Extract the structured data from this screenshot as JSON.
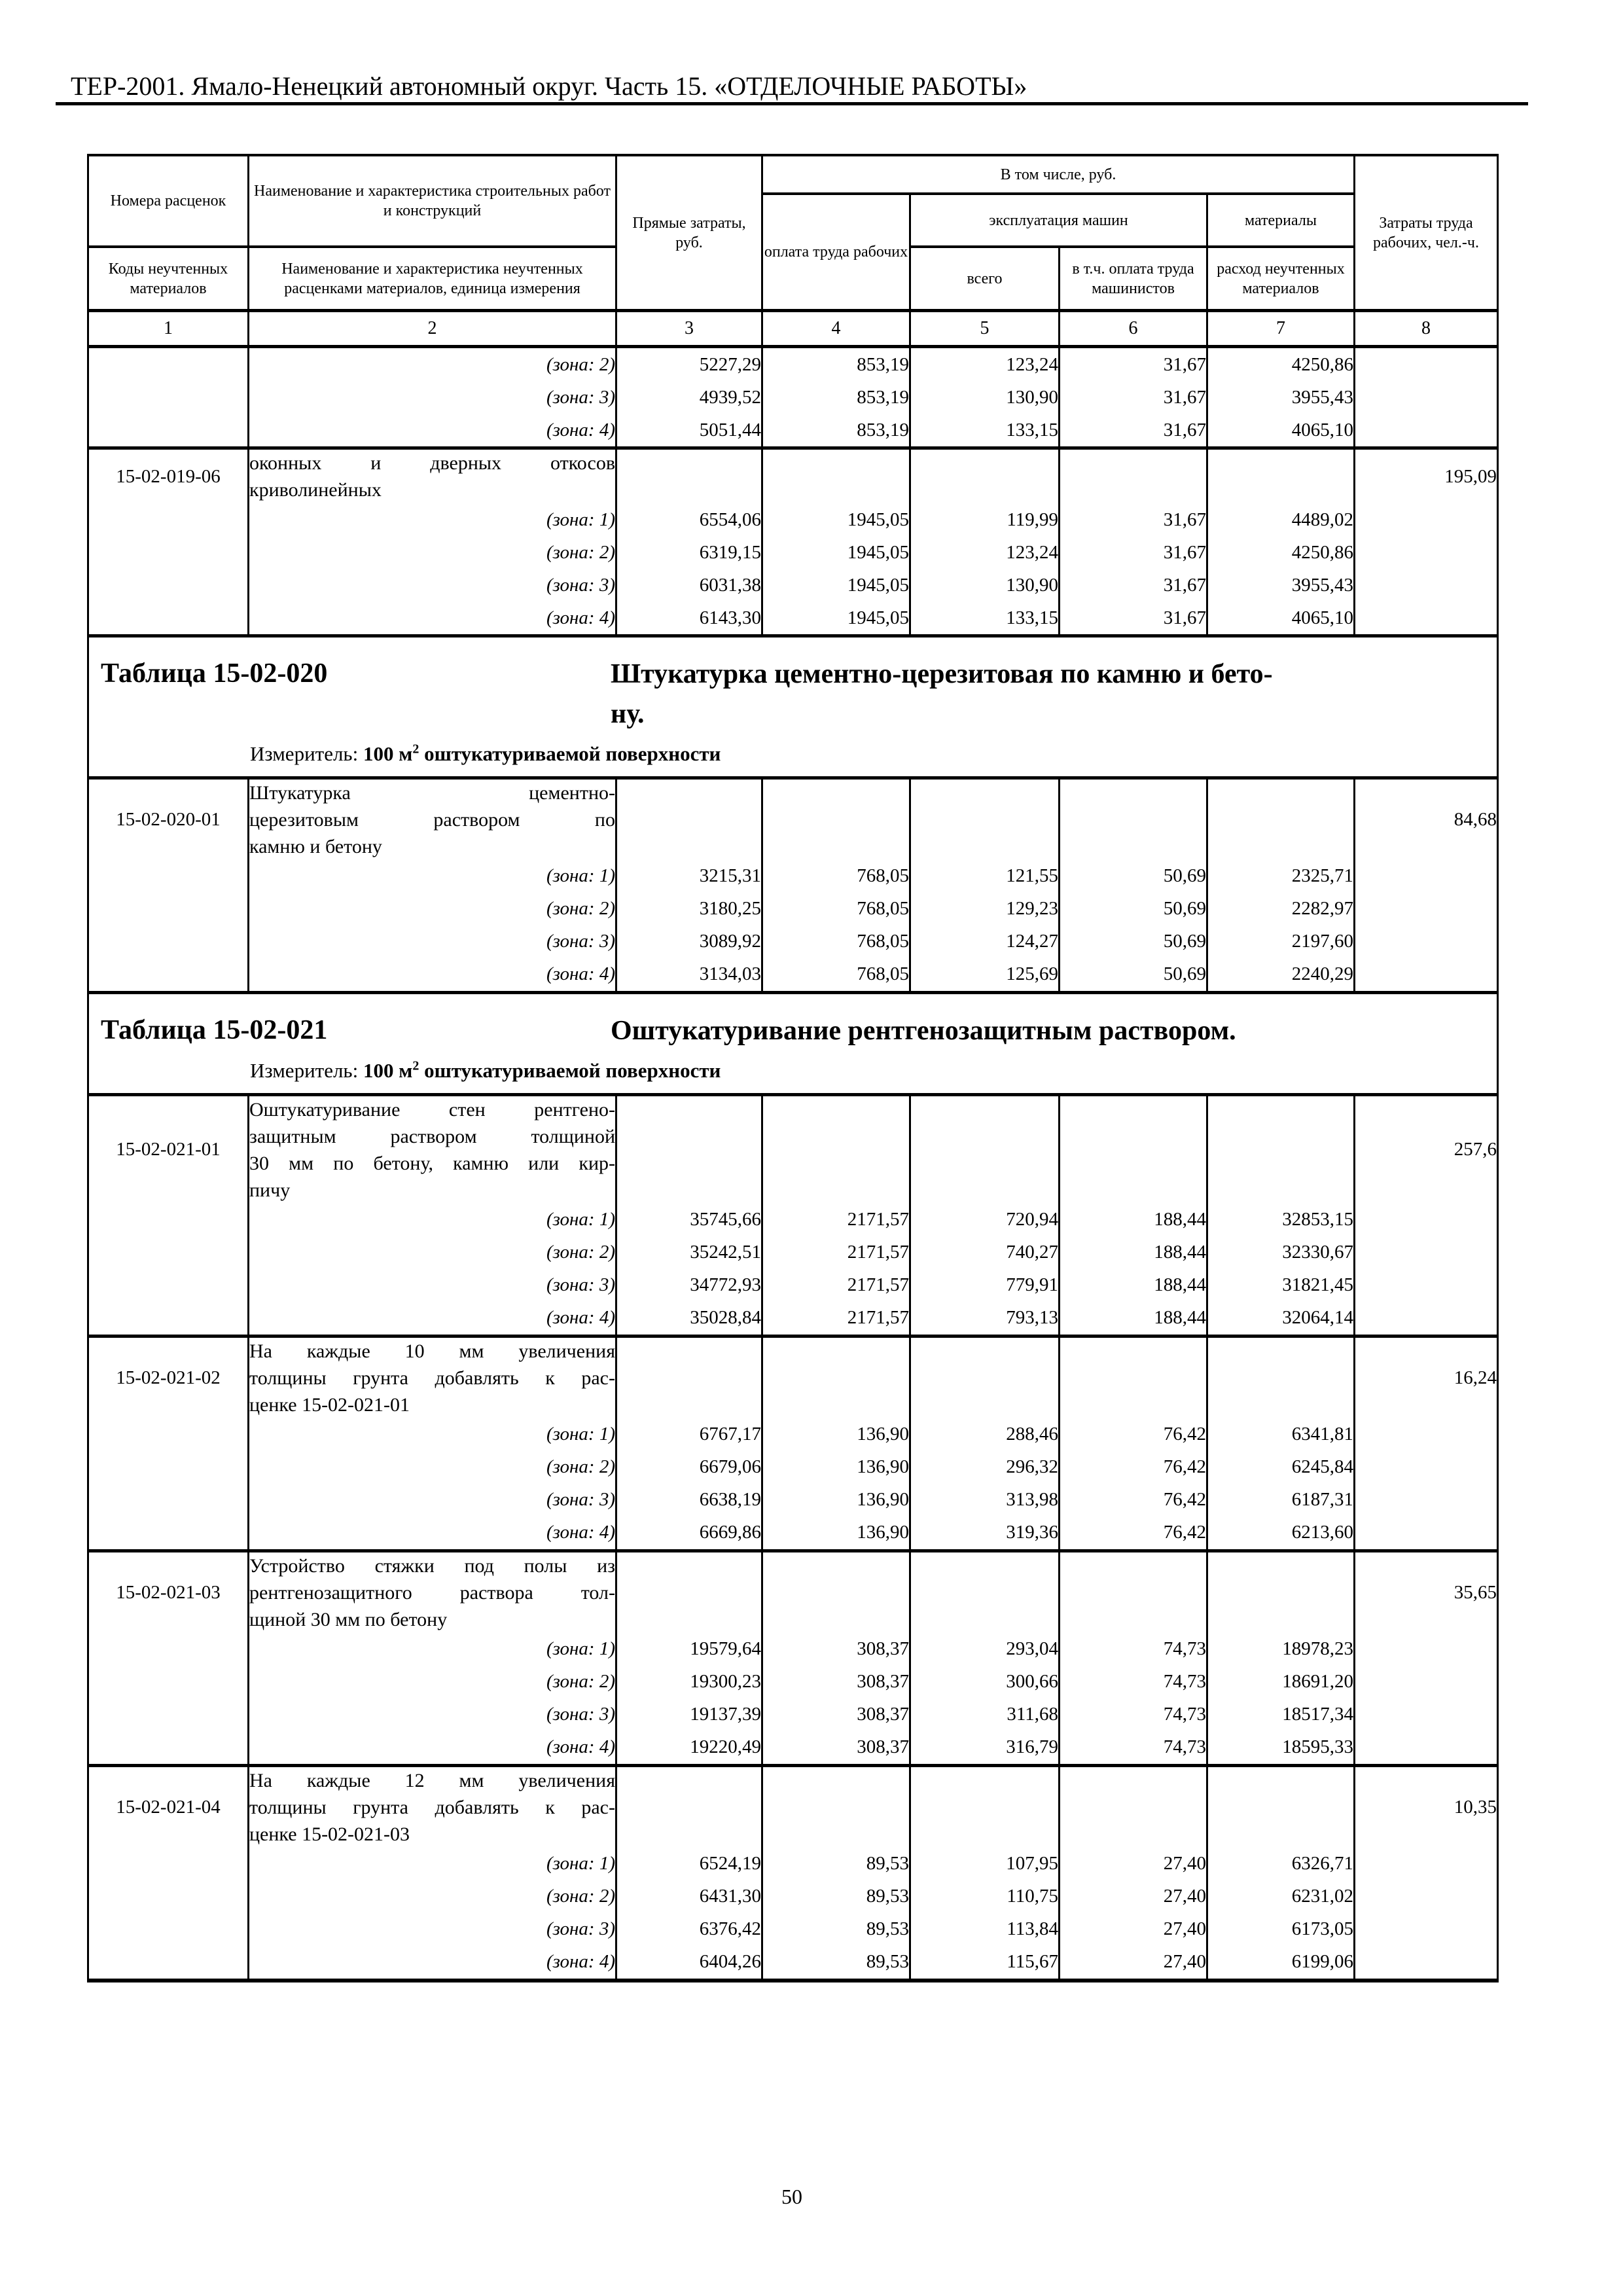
{
  "page": {
    "header_title": "ТЕР-2001. Ямало-Ненецкий автономный округ. Часть 15. «ОТДЕЛОЧНЫЕ РАБОТЫ»",
    "page_number": "50"
  },
  "grid_header": {
    "rate_numbers": "Номера расценок",
    "material_codes": "Коды неучтенных материалов",
    "works_name": "Наименование и характеристика строительных работ и конструкций",
    "materials_name": "Наименование и характеристика неучтенных расценками материалов, единица измерения",
    "direct_costs": "Прямые затраты, руб.",
    "including": "В том числе, руб.",
    "labor_pay": "оплата труда рабочих",
    "machines": "эксплуатация машин",
    "machines_total": "всего",
    "machinists_pay": "в т.ч. оплата труда машинистов",
    "materials": "материалы",
    "materials_consumption": "расход неучтенных материалов",
    "labor_costs": "Затраты труда рабочих, чел.-ч.",
    "column_numbers": [
      "1",
      "2",
      "3",
      "4",
      "5",
      "6",
      "7",
      "8"
    ]
  },
  "blocks": [
    {
      "type": "continuation",
      "zones": [
        {
          "label": "(зона: 2)",
          "values": [
            "5227,29",
            "853,19",
            "123,24",
            "31,67",
            "4250,86"
          ]
        },
        {
          "label": "(зона: 3)",
          "values": [
            "4939,52",
            "853,19",
            "130,90",
            "31,67",
            "3955,43"
          ]
        },
        {
          "label": "(зона: 4)",
          "values": [
            "5051,44",
            "853,19",
            "133,15",
            "31,67",
            "4065,10"
          ]
        }
      ]
    },
    {
      "type": "item",
      "code": "15-02-019-06",
      "name_lines": [
        "оконных и дверных откосов",
        "криволинейных"
      ],
      "labor": "195,09",
      "zones": [
        {
          "label": "(зона: 1)",
          "values": [
            "6554,06",
            "1945,05",
            "119,99",
            "31,67",
            "4489,02"
          ]
        },
        {
          "label": "(зона: 2)",
          "values": [
            "6319,15",
            "1945,05",
            "123,24",
            "31,67",
            "4250,86"
          ]
        },
        {
          "label": "(зона: 3)",
          "values": [
            "6031,38",
            "1945,05",
            "130,90",
            "31,67",
            "3955,43"
          ]
        },
        {
          "label": "(зона: 4)",
          "values": [
            "6143,30",
            "1945,05",
            "133,15",
            "31,67",
            "4065,10"
          ]
        }
      ]
    },
    {
      "type": "section",
      "label": "Таблица 15-02-020",
      "title": "Штукатурка цементно-церезитовая по камню и бето-\nну.",
      "measure_label": "Измеритель: ",
      "measure_prefix": "100 м",
      "measure_sup": "2",
      "measure_suffix": " оштукатуриваемой поверхности"
    },
    {
      "type": "item",
      "code": "15-02-020-01",
      "name_lines": [
        "Штукатурка цементно-",
        "церезитовым раствором по",
        "камню и бетону"
      ],
      "labor": "84,68",
      "zones": [
        {
          "label": "(зона: 1)",
          "values": [
            "3215,31",
            "768,05",
            "121,55",
            "50,69",
            "2325,71"
          ]
        },
        {
          "label": "(зона: 2)",
          "values": [
            "3180,25",
            "768,05",
            "129,23",
            "50,69",
            "2282,97"
          ]
        },
        {
          "label": "(зона: 3)",
          "values": [
            "3089,92",
            "768,05",
            "124,27",
            "50,69",
            "2197,60"
          ]
        },
        {
          "label": "(зона: 4)",
          "values": [
            "3134,03",
            "768,05",
            "125,69",
            "50,69",
            "2240,29"
          ]
        }
      ]
    },
    {
      "type": "section",
      "label": "Таблица 15-02-021",
      "title": "Оштукатуривание рентгенозащитным раствором.",
      "measure_label": "Измеритель: ",
      "measure_prefix": "100 м",
      "measure_sup": "2",
      "measure_suffix": " оштукатуриваемой поверхности"
    },
    {
      "type": "item",
      "code": "15-02-021-01",
      "name_lines": [
        "Оштукатуривание стен рентгено-",
        "защитным раствором толщиной",
        "30 мм по бетону, камню или кир-",
        "пичу"
      ],
      "labor": "257,6",
      "zones": [
        {
          "label": "(зона: 1)",
          "values": [
            "35745,66",
            "2171,57",
            "720,94",
            "188,44",
            "32853,15"
          ]
        },
        {
          "label": "(зона: 2)",
          "values": [
            "35242,51",
            "2171,57",
            "740,27",
            "188,44",
            "32330,67"
          ]
        },
        {
          "label": "(зона: 3)",
          "values": [
            "34772,93",
            "2171,57",
            "779,91",
            "188,44",
            "31821,45"
          ]
        },
        {
          "label": "(зона: 4)",
          "values": [
            "35028,84",
            "2171,57",
            "793,13",
            "188,44",
            "32064,14"
          ]
        }
      ]
    },
    {
      "type": "item",
      "code": "15-02-021-02",
      "name_lines": [
        "На каждые 10 мм увеличения",
        "толщины грунта добавлять к рас-",
        "ценке 15-02-021-01"
      ],
      "labor": "16,24",
      "zones": [
        {
          "label": "(зона: 1)",
          "values": [
            "6767,17",
            "136,90",
            "288,46",
            "76,42",
            "6341,81"
          ]
        },
        {
          "label": "(зона: 2)",
          "values": [
            "6679,06",
            "136,90",
            "296,32",
            "76,42",
            "6245,84"
          ]
        },
        {
          "label": "(зона: 3)",
          "values": [
            "6638,19",
            "136,90",
            "313,98",
            "76,42",
            "6187,31"
          ]
        },
        {
          "label": "(зона: 4)",
          "values": [
            "6669,86",
            "136,90",
            "319,36",
            "76,42",
            "6213,60"
          ]
        }
      ]
    },
    {
      "type": "item",
      "code": "15-02-021-03",
      "name_lines": [
        "Устройство стяжки под полы из",
        "рентгенозащитного раствора тол-",
        "щиной 30 мм по бетону"
      ],
      "labor": "35,65",
      "zones": [
        {
          "label": "(зона: 1)",
          "values": [
            "19579,64",
            "308,37",
            "293,04",
            "74,73",
            "18978,23"
          ]
        },
        {
          "label": "(зона: 2)",
          "values": [
            "19300,23",
            "308,37",
            "300,66",
            "74,73",
            "18691,20"
          ]
        },
        {
          "label": "(зона: 3)",
          "values": [
            "19137,39",
            "308,37",
            "311,68",
            "74,73",
            "18517,34"
          ]
        },
        {
          "label": "(зона: 4)",
          "values": [
            "19220,49",
            "308,37",
            "316,79",
            "74,73",
            "18595,33"
          ]
        }
      ]
    },
    {
      "type": "item",
      "code": "15-02-021-04",
      "name_lines": [
        "На каждые 12 мм увеличения",
        "толщины грунта добавлять к рас-",
        "ценке 15-02-021-03"
      ],
      "labor": "10,35",
      "zones": [
        {
          "label": "(зона: 1)",
          "values": [
            "6524,19",
            "89,53",
            "107,95",
            "27,40",
            "6326,71"
          ]
        },
        {
          "label": "(зона: 2)",
          "values": [
            "6431,30",
            "89,53",
            "110,75",
            "27,40",
            "6231,02"
          ]
        },
        {
          "label": "(зона: 3)",
          "values": [
            "6376,42",
            "89,53",
            "113,84",
            "27,40",
            "6173,05"
          ]
        },
        {
          "label": "(зона: 4)",
          "values": [
            "6404,26",
            "89,53",
            "115,67",
            "27,40",
            "6199,06"
          ]
        }
      ]
    }
  ]
}
